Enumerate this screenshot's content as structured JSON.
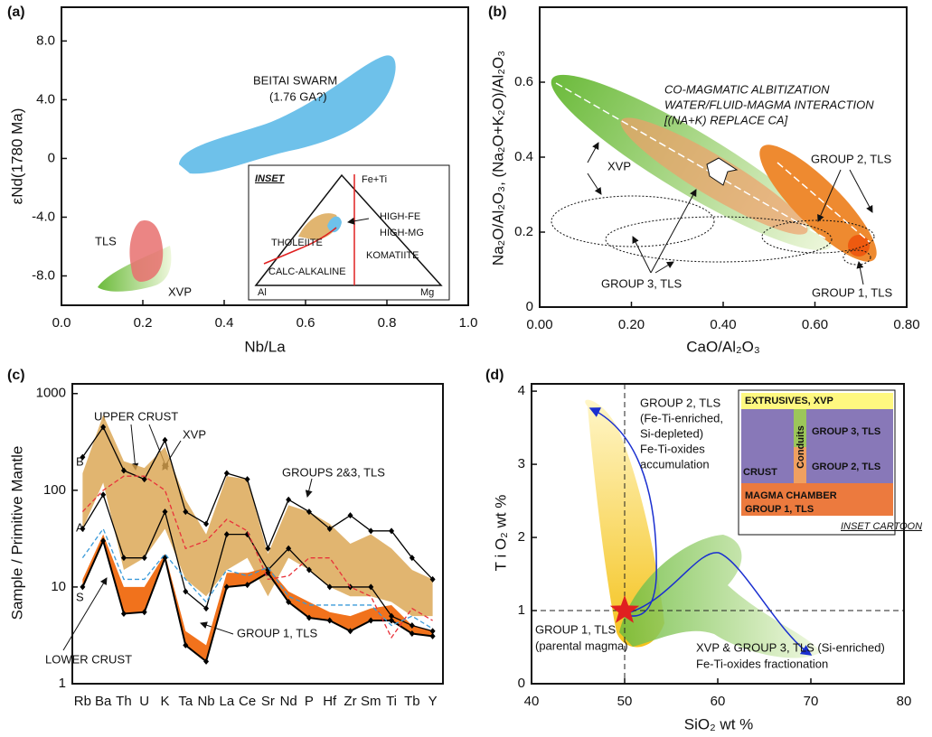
{
  "chart_data": [
    {
      "type": "fields",
      "panel_label": "(a)",
      "xlabel": "Nb/La",
      "ylabel": "εNd(1780 Ma)",
      "xlim": [
        0,
        1.0
      ],
      "xticks": [
        {
          "value": 0,
          "label": "0.0"
        },
        0.2,
        0.4,
        0.6,
        0.8,
        {
          "value": 1.0,
          "label": "1.0"
        }
      ],
      "ylim": [
        -10,
        10.3
      ],
      "yticks": [
        {
          "value": -8,
          "label": "-8.0"
        },
        {
          "value": -4,
          "label": "-4.0"
        },
        0,
        {
          "value": 4,
          "label": "4.0"
        },
        {
          "value": 8,
          "label": "8.0"
        }
      ],
      "annotations": [
        "BEITAI SWARM",
        "(1.76 GA?)",
        "TLS",
        "XVP"
      ],
      "inset": {
        "title": "INSET",
        "labels": [
          "Fe+Ti",
          "HIGH-FE",
          "HIGH-MG",
          "THOLEIITE",
          "KOMATIITE",
          "CALC-ALKALINE",
          "Al",
          "Mg"
        ]
      }
    },
    {
      "type": "fields",
      "panel_label": "(b)",
      "xlabel": "CaO/Al₂O₃",
      "ylabel": "Na₂O/Al₂O₃, (Na₂O+K₂O)/Al₂O₃",
      "xlim": [
        0,
        0.8
      ],
      "xticks": [
        {
          "value": 0,
          "label": "0.00"
        },
        {
          "value": 0.2,
          "label": "0.20"
        },
        {
          "value": 0.4,
          "label": "0.40"
        },
        {
          "value": 0.6,
          "label": "0.60"
        },
        {
          "value": 0.8,
          "label": "0.80"
        }
      ],
      "ylim": [
        0,
        0.8
      ],
      "yticks": [
        0,
        0.2,
        0.4,
        0.6
      ],
      "annotations": [
        "CO-MAGMATIC ALBITIZATION",
        "WATER/FLUID-MAGMA INTERACTION",
        "[(NA+K) REPLACE CA]",
        "XVP",
        "GROUP 2, TLS",
        "GROUP 3, TLS",
        "GROUP 1, TLS"
      ]
    },
    {
      "type": "line",
      "panel_label": "(c)",
      "ylabel": "Sample / Primitive Mantle",
      "log_y": true,
      "ylim": [
        1,
        1260
      ],
      "yticks": [
        1,
        10,
        100,
        1000
      ],
      "categories": [
        "Rb",
        "Ba",
        "Th",
        "U",
        "K",
        "Ta",
        "Nb",
        "La",
        "Ce",
        "Sr",
        "Nd",
        "P",
        "Hf",
        "Zr",
        "Sm",
        "Ti",
        "Tb",
        "Y"
      ],
      "fields": [
        {
          "name": "GROUPS 2&3, TLS",
          "color": "#d9a24c",
          "upper": [
            150,
            600,
            200,
            170,
            280,
            80,
            35,
            140,
            130,
            22,
            70,
            60,
            45,
            28,
            35,
            25,
            15,
            12
          ],
          "lower": [
            40,
            120,
            15,
            20,
            40,
            12,
            8,
            15,
            20,
            8,
            20,
            15,
            10,
            8,
            8,
            7,
            5,
            5
          ]
        },
        {
          "name": "GROUP 1, TLS",
          "color": "#f06a10",
          "upper": [
            12,
            35,
            10,
            10,
            22,
            3.5,
            2.5,
            14,
            14,
            16,
            9,
            7,
            5.5,
            5,
            6,
            6.5,
            4,
            3.5
          ],
          "lower": [
            10,
            30,
            5.3,
            5.5,
            20,
            2.5,
            1.7,
            10,
            10.5,
            14,
            7,
            4.8,
            4.5,
            3.5,
            4.5,
            4.5,
            3.3,
            3.1
          ]
        }
      ],
      "series": [
        {
          "name": "B",
          "color": "#000000",
          "style": "solid",
          "marker": true,
          "values": [
            220,
            450,
            160,
            130,
            330,
            60,
            45,
            150,
            130,
            25,
            80,
            60,
            40,
            55,
            38,
            38,
            20,
            12
          ]
        },
        {
          "name": "A",
          "color": "#000000",
          "style": "solid",
          "marker": true,
          "values": [
            40,
            90,
            20,
            20,
            60,
            9,
            6,
            35,
            35,
            15,
            25,
            15,
            10,
            10,
            10,
            5,
            4,
            3.5
          ]
        },
        {
          "name": "S",
          "color": "#000000",
          "style": "solid",
          "marker": true,
          "values": [
            10,
            30,
            5.3,
            5.5,
            20,
            2.5,
            1.7,
            10,
            10.5,
            14,
            7,
            4.8,
            4.5,
            3.5,
            4.5,
            4.5,
            3.3,
            3.1
          ]
        },
        {
          "name": "XVP",
          "color": "#e8323a",
          "style": "dashed",
          "marker": false,
          "values": [
            60,
            100,
            140,
            140,
            100,
            25,
            30,
            50,
            38,
            12,
            13,
            20,
            20,
            10,
            8,
            3,
            6,
            4.5
          ]
        },
        {
          "name": "LOWER CRUST",
          "color": "#3a9ad9",
          "style": "dashed",
          "marker": false,
          "values": [
            20,
            40,
            12,
            12,
            22,
            12,
            7,
            15,
            13,
            16,
            8,
            6.5,
            6.5,
            6.5,
            6.5,
            4,
            5,
            3.7
          ]
        }
      ],
      "annotations": [
        "UPPER CRUST"
      ]
    },
    {
      "type": "scatter",
      "panel_label": "(d)",
      "xlabel": "SiO₂ wt %",
      "ylabel": "T i O₂ wt %",
      "xlim": [
        40,
        80
      ],
      "xticks": [
        40,
        50,
        60,
        70,
        80
      ],
      "ylim": [
        0,
        4.1
      ],
      "yticks": [
        0,
        1,
        2,
        3,
        4
      ],
      "vline": 50,
      "hline": 1,
      "points": {
        "x": [
          50
        ],
        "y": [
          1
        ],
        "color": "#e02020"
      },
      "annotations": [
        "GROUP 2, TLS",
        "(Fe-Ti-enriched,",
        "Si-depleted)",
        "Fe-Ti-oxides",
        "accumulation",
        "GROUP 1, TLS",
        "(parental magma)",
        "XVP & GROUP 3, TLS (Si-enriched)",
        "Fe-Ti-oxides fractionation"
      ],
      "inset": {
        "title": "INSET CARTOON",
        "labels": [
          "EXTRUSIVES, XVP",
          "GROUP 3, TLS",
          "GROUP 2, TLS",
          "CRUST",
          "Conduits",
          "MAGMA CHAMBER",
          "GROUP 1, TLS"
        ]
      }
    }
  ]
}
